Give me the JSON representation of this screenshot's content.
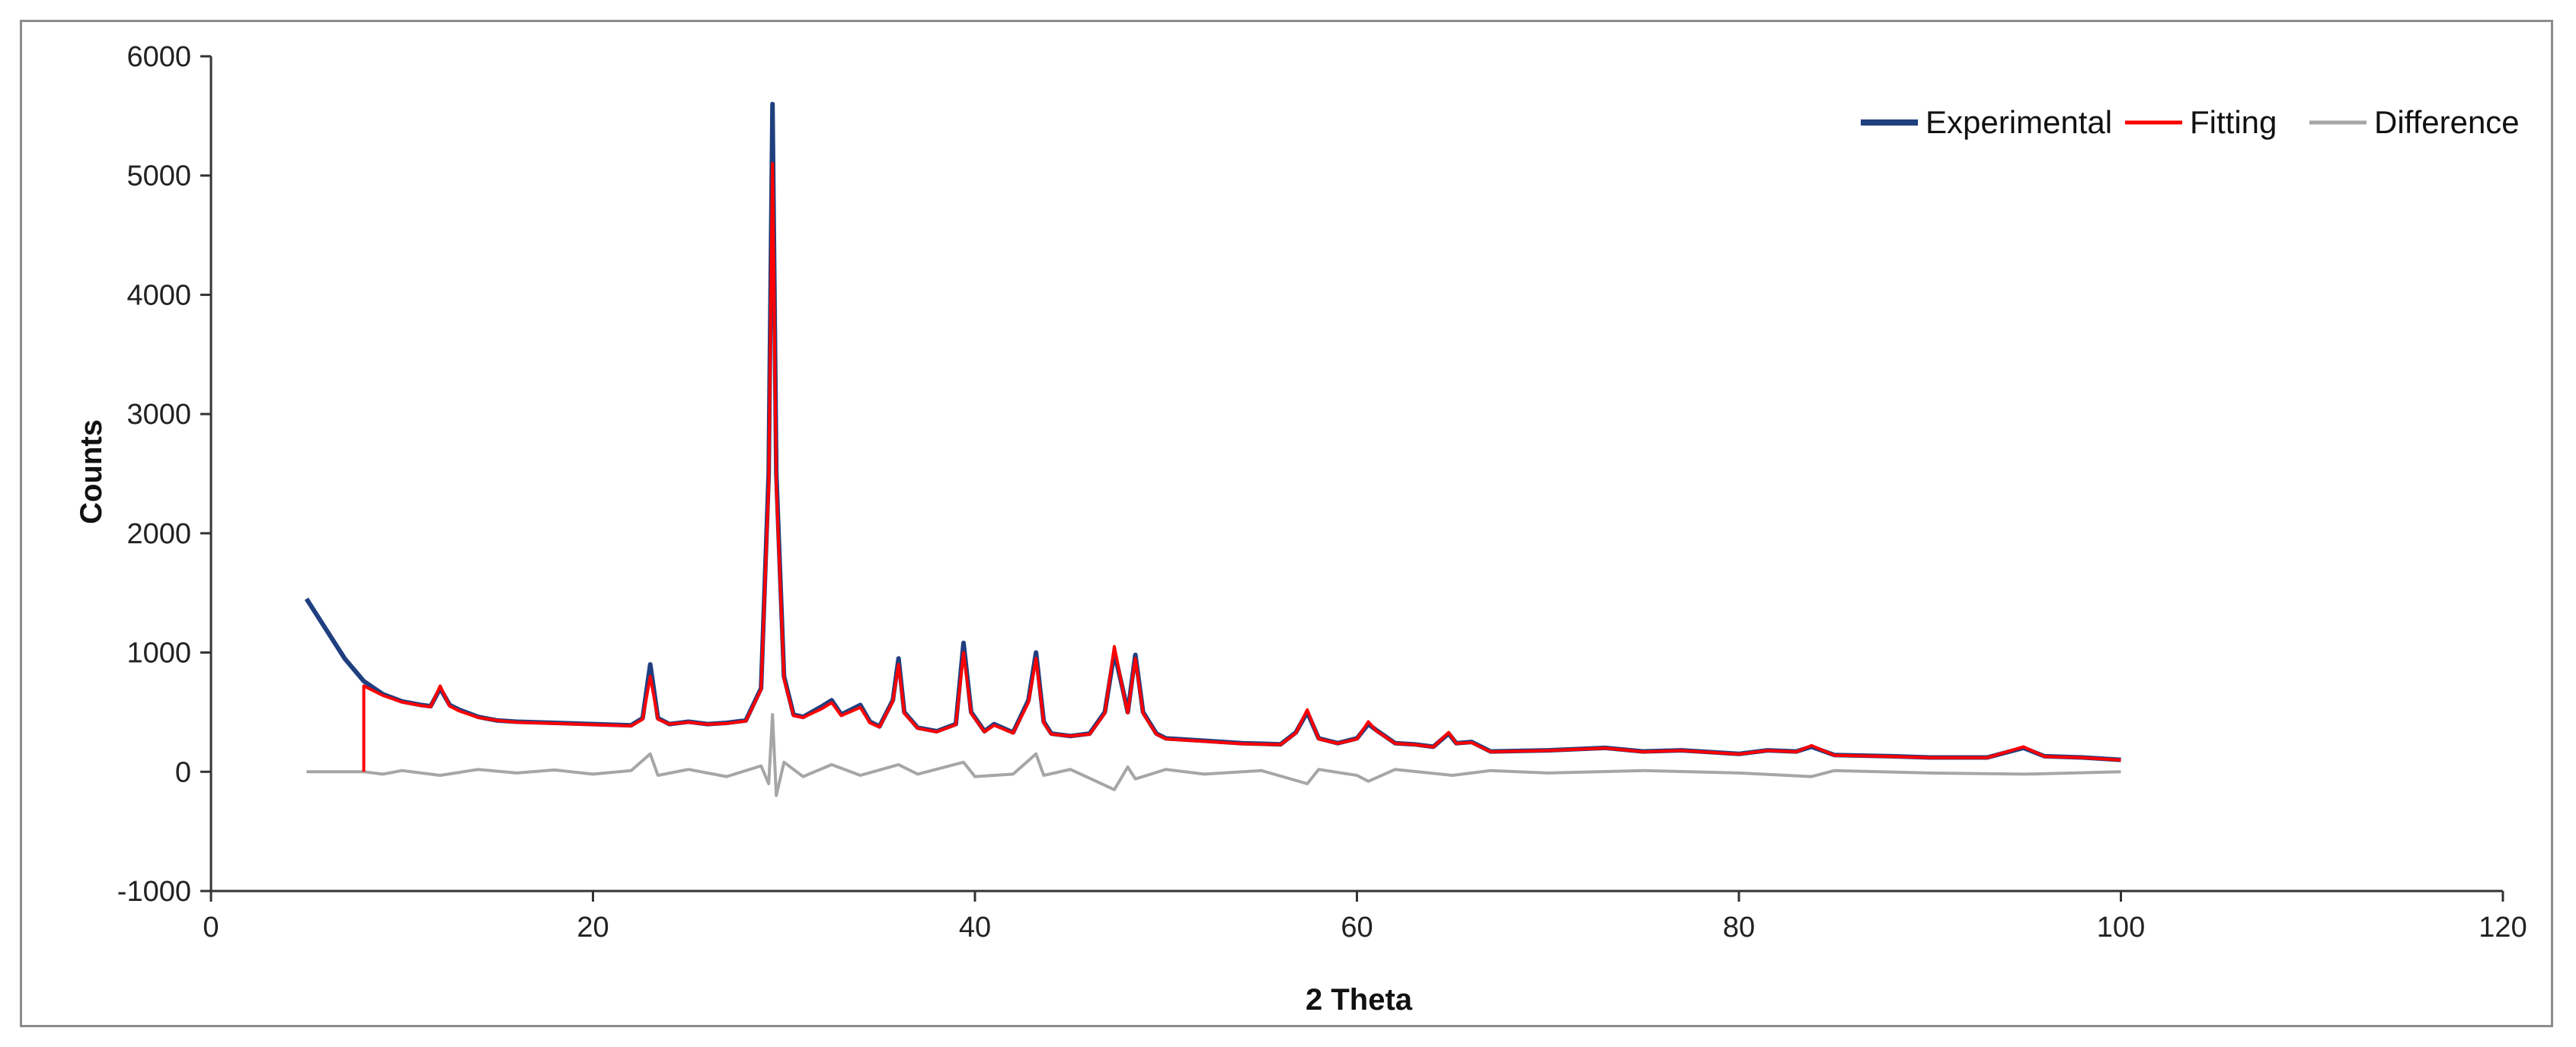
{
  "chart_data": {
    "type": "line",
    "title": "",
    "xlabel": "2 Theta",
    "ylabel": "Counts",
    "xlim": [
      0,
      120
    ],
    "ylim": [
      -1000,
      6000
    ],
    "x_ticks": [
      0,
      20,
      40,
      60,
      80,
      100,
      120
    ],
    "y_ticks": [
      -1000,
      0,
      1000,
      2000,
      3000,
      4000,
      5000,
      6000
    ],
    "grid": false,
    "legend_position": "top-right",
    "x_range_data": [
      5,
      100
    ],
    "series": [
      {
        "name": "Experimental",
        "color": "#1f3f7f",
        "points": [
          [
            5,
            1450
          ],
          [
            6,
            1200
          ],
          [
            7,
            950
          ],
          [
            8,
            760
          ],
          [
            9,
            650
          ],
          [
            10,
            590
          ],
          [
            11,
            560
          ],
          [
            11.5,
            550
          ],
          [
            12,
            700
          ],
          [
            12.5,
            560
          ],
          [
            13,
            520
          ],
          [
            14,
            460
          ],
          [
            15,
            430
          ],
          [
            16,
            420
          ],
          [
            18,
            410
          ],
          [
            20,
            400
          ],
          [
            22,
            390
          ],
          [
            22.6,
            450
          ],
          [
            23,
            900
          ],
          [
            23.4,
            450
          ],
          [
            24,
            400
          ],
          [
            25,
            420
          ],
          [
            26,
            400
          ],
          [
            27,
            410
          ],
          [
            28,
            430
          ],
          [
            28.8,
            700
          ],
          [
            29.2,
            2500
          ],
          [
            29.4,
            5600
          ],
          [
            29.6,
            2500
          ],
          [
            30,
            800
          ],
          [
            30.5,
            480
          ],
          [
            31,
            460
          ],
          [
            32,
            550
          ],
          [
            32.5,
            600
          ],
          [
            33,
            480
          ],
          [
            34,
            560
          ],
          [
            34.5,
            420
          ],
          [
            35,
            380
          ],
          [
            35.7,
            600
          ],
          [
            36,
            950
          ],
          [
            36.3,
            500
          ],
          [
            37,
            370
          ],
          [
            38,
            340
          ],
          [
            39,
            400
          ],
          [
            39.4,
            1080
          ],
          [
            39.8,
            500
          ],
          [
            40.5,
            340
          ],
          [
            41,
            400
          ],
          [
            42,
            330
          ],
          [
            42.8,
            600
          ],
          [
            43.2,
            1000
          ],
          [
            43.6,
            420
          ],
          [
            44,
            320
          ],
          [
            45,
            300
          ],
          [
            46,
            320
          ],
          [
            46.8,
            500
          ],
          [
            47.3,
            1000
          ],
          [
            47.8,
            650
          ],
          [
            48,
            500
          ],
          [
            48.4,
            980
          ],
          [
            48.8,
            500
          ],
          [
            49.5,
            320
          ],
          [
            50,
            280
          ],
          [
            52,
            260
          ],
          [
            54,
            240
          ],
          [
            56,
            230
          ],
          [
            56.8,
            330
          ],
          [
            57.4,
            500
          ],
          [
            58,
            280
          ],
          [
            59,
            240
          ],
          [
            60,
            280
          ],
          [
            60.6,
            400
          ],
          [
            61,
            350
          ],
          [
            62,
            240
          ],
          [
            63,
            230
          ],
          [
            64,
            210
          ],
          [
            64.8,
            320
          ],
          [
            65.2,
            240
          ],
          [
            66,
            250
          ],
          [
            67,
            170
          ],
          [
            70,
            180
          ],
          [
            73,
            200
          ],
          [
            75,
            170
          ],
          [
            77,
            180
          ],
          [
            80,
            150
          ],
          [
            81.5,
            180
          ],
          [
            83,
            170
          ],
          [
            83.8,
            210
          ],
          [
            85,
            140
          ],
          [
            88,
            130
          ],
          [
            90,
            120
          ],
          [
            93,
            120
          ],
          [
            94.9,
            200
          ],
          [
            96,
            130
          ],
          [
            98,
            120
          ],
          [
            100,
            100
          ]
        ]
      },
      {
        "name": "Fitting",
        "color": "#ff0000",
        "points": [
          [
            8,
            0
          ],
          [
            8,
            720
          ],
          [
            9,
            640
          ],
          [
            10,
            585
          ],
          [
            11,
            555
          ],
          [
            11.5,
            545
          ],
          [
            12,
            720
          ],
          [
            12.5,
            550
          ],
          [
            13,
            510
          ],
          [
            14,
            455
          ],
          [
            15,
            430
          ],
          [
            16,
            415
          ],
          [
            18,
            405
          ],
          [
            20,
            395
          ],
          [
            22,
            385
          ],
          [
            22.6,
            440
          ],
          [
            23,
            800
          ],
          [
            23.4,
            440
          ],
          [
            24,
            400
          ],
          [
            25,
            415
          ],
          [
            26,
            398
          ],
          [
            27,
            405
          ],
          [
            28,
            425
          ],
          [
            28.8,
            690
          ],
          [
            29.2,
            2400
          ],
          [
            29.4,
            5100
          ],
          [
            29.6,
            2400
          ],
          [
            30,
            780
          ],
          [
            30.5,
            470
          ],
          [
            31,
            455
          ],
          [
            32,
            530
          ],
          [
            32.5,
            580
          ],
          [
            33,
            470
          ],
          [
            34,
            540
          ],
          [
            34.5,
            410
          ],
          [
            35,
            375
          ],
          [
            35.7,
            590
          ],
          [
            36,
            900
          ],
          [
            36.3,
            490
          ],
          [
            37,
            365
          ],
          [
            38,
            335
          ],
          [
            39,
            395
          ],
          [
            39.4,
            1000
          ],
          [
            39.8,
            490
          ],
          [
            40.5,
            335
          ],
          [
            41,
            390
          ],
          [
            42,
            325
          ],
          [
            42.8,
            580
          ],
          [
            43.2,
            950
          ],
          [
            43.6,
            410
          ],
          [
            44,
            315
          ],
          [
            45,
            300
          ],
          [
            46,
            315
          ],
          [
            46.8,
            490
          ],
          [
            47.3,
            1050
          ],
          [
            47.8,
            640
          ],
          [
            48,
            495
          ],
          [
            48.4,
            950
          ],
          [
            48.8,
            490
          ],
          [
            49.5,
            315
          ],
          [
            50,
            275
          ],
          [
            52,
            255
          ],
          [
            54,
            235
          ],
          [
            56,
            228
          ],
          [
            56.8,
            325
          ],
          [
            57.4,
            520
          ],
          [
            58,
            275
          ],
          [
            59,
            238
          ],
          [
            60,
            275
          ],
          [
            60.6,
            420
          ],
          [
            61,
            345
          ],
          [
            62,
            238
          ],
          [
            63,
            228
          ],
          [
            64,
            208
          ],
          [
            64.8,
            330
          ],
          [
            65.2,
            238
          ],
          [
            66,
            245
          ],
          [
            67,
            168
          ],
          [
            70,
            178
          ],
          [
            73,
            198
          ],
          [
            75,
            168
          ],
          [
            77,
            178
          ],
          [
            80,
            148
          ],
          [
            81.5,
            178
          ],
          [
            83,
            168
          ],
          [
            83.8,
            220
          ],
          [
            85,
            138
          ],
          [
            88,
            128
          ],
          [
            90,
            118
          ],
          [
            93,
            118
          ],
          [
            94.9,
            210
          ],
          [
            96,
            128
          ],
          [
            98,
            118
          ],
          [
            100,
            98
          ]
        ]
      },
      {
        "name": "Difference",
        "color": "#a6a6a6",
        "points": [
          [
            5,
            0
          ],
          [
            8,
            0
          ],
          [
            9,
            -20
          ],
          [
            10,
            10
          ],
          [
            12,
            -30
          ],
          [
            14,
            20
          ],
          [
            16,
            -10
          ],
          [
            18,
            15
          ],
          [
            20,
            -20
          ],
          [
            22,
            10
          ],
          [
            23,
            150
          ],
          [
            23.4,
            -30
          ],
          [
            25,
            20
          ],
          [
            27,
            -40
          ],
          [
            28.8,
            50
          ],
          [
            29.2,
            -100
          ],
          [
            29.4,
            480
          ],
          [
            29.6,
            -200
          ],
          [
            30,
            80
          ],
          [
            31,
            -40
          ],
          [
            32.5,
            60
          ],
          [
            34,
            -30
          ],
          [
            36,
            60
          ],
          [
            37,
            -20
          ],
          [
            39.4,
            80
          ],
          [
            40,
            -40
          ],
          [
            42,
            -20
          ],
          [
            43.2,
            150
          ],
          [
            43.6,
            -30
          ],
          [
            45,
            20
          ],
          [
            47.3,
            -150
          ],
          [
            48,
            40
          ],
          [
            48.4,
            -60
          ],
          [
            50,
            20
          ],
          [
            52,
            -20
          ],
          [
            55,
            10
          ],
          [
            57.4,
            -100
          ],
          [
            58,
            20
          ],
          [
            60,
            -30
          ],
          [
            60.6,
            -80
          ],
          [
            62,
            20
          ],
          [
            65,
            -30
          ],
          [
            67,
            10
          ],
          [
            70,
            -10
          ],
          [
            75,
            10
          ],
          [
            80,
            -10
          ],
          [
            83.8,
            -40
          ],
          [
            85,
            10
          ],
          [
            90,
            -10
          ],
          [
            95,
            -20
          ],
          [
            100,
            0
          ]
        ]
      }
    ]
  }
}
